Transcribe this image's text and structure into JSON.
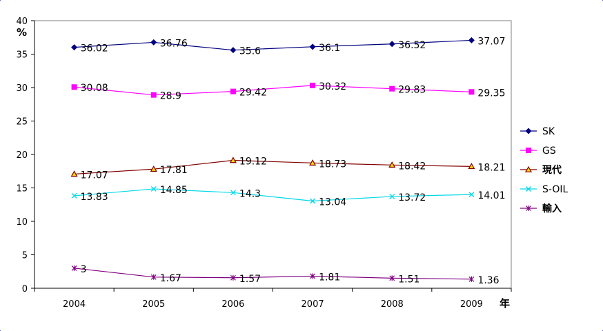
{
  "chart_data": {
    "type": "line",
    "x": [
      "2004",
      "2005",
      "2006",
      "2007",
      "2008",
      "2009"
    ],
    "ylim": [
      0,
      40
    ],
    "yticks": [
      0,
      5,
      10,
      15,
      20,
      25,
      30,
      35,
      40
    ],
    "ylabel": "%",
    "xlabel": "年",
    "grid": false,
    "legend_position": "right",
    "series": [
      {
        "name": "SK",
        "color": "#000080",
        "marker": "diamond",
        "values": [
          36.02,
          36.76,
          35.6,
          36.1,
          36.52,
          37.07
        ],
        "labels": [
          "36.02",
          "36.76",
          "35.6",
          "36.1",
          "36.52",
          "37.07"
        ]
      },
      {
        "name": "GS",
        "color": "#ff00ff",
        "marker": "square",
        "values": [
          30.08,
          28.9,
          29.42,
          30.32,
          29.83,
          29.35
        ],
        "labels": [
          "30.08",
          "28.9",
          "29.42",
          "30.32",
          "29.83",
          "29.35"
        ]
      },
      {
        "name": "現代",
        "color": "#800000",
        "marker": "triangle",
        "markerFill": "#ffd700",
        "values": [
          17.07,
          17.81,
          19.12,
          18.73,
          18.42,
          18.21
        ],
        "labels": [
          "17.07",
          "17.81",
          "19.12",
          "18.73",
          "18.42",
          "18.21"
        ]
      },
      {
        "name": "S-OIL",
        "color": "#00d8e8",
        "marker": "x",
        "values": [
          13.83,
          14.85,
          14.3,
          13.04,
          13.72,
          14.01
        ],
        "labels": [
          "13.83",
          "14.85",
          "14.3",
          "13.04",
          "13.72",
          "14.01"
        ]
      },
      {
        "name": "輸入",
        "color": "#800080",
        "marker": "star",
        "values": [
          3,
          1.67,
          1.57,
          1.81,
          1.51,
          1.36
        ],
        "labels": [
          "3",
          "1.67",
          "1.57",
          "1.81",
          "1.51",
          "1.36"
        ]
      }
    ]
  }
}
